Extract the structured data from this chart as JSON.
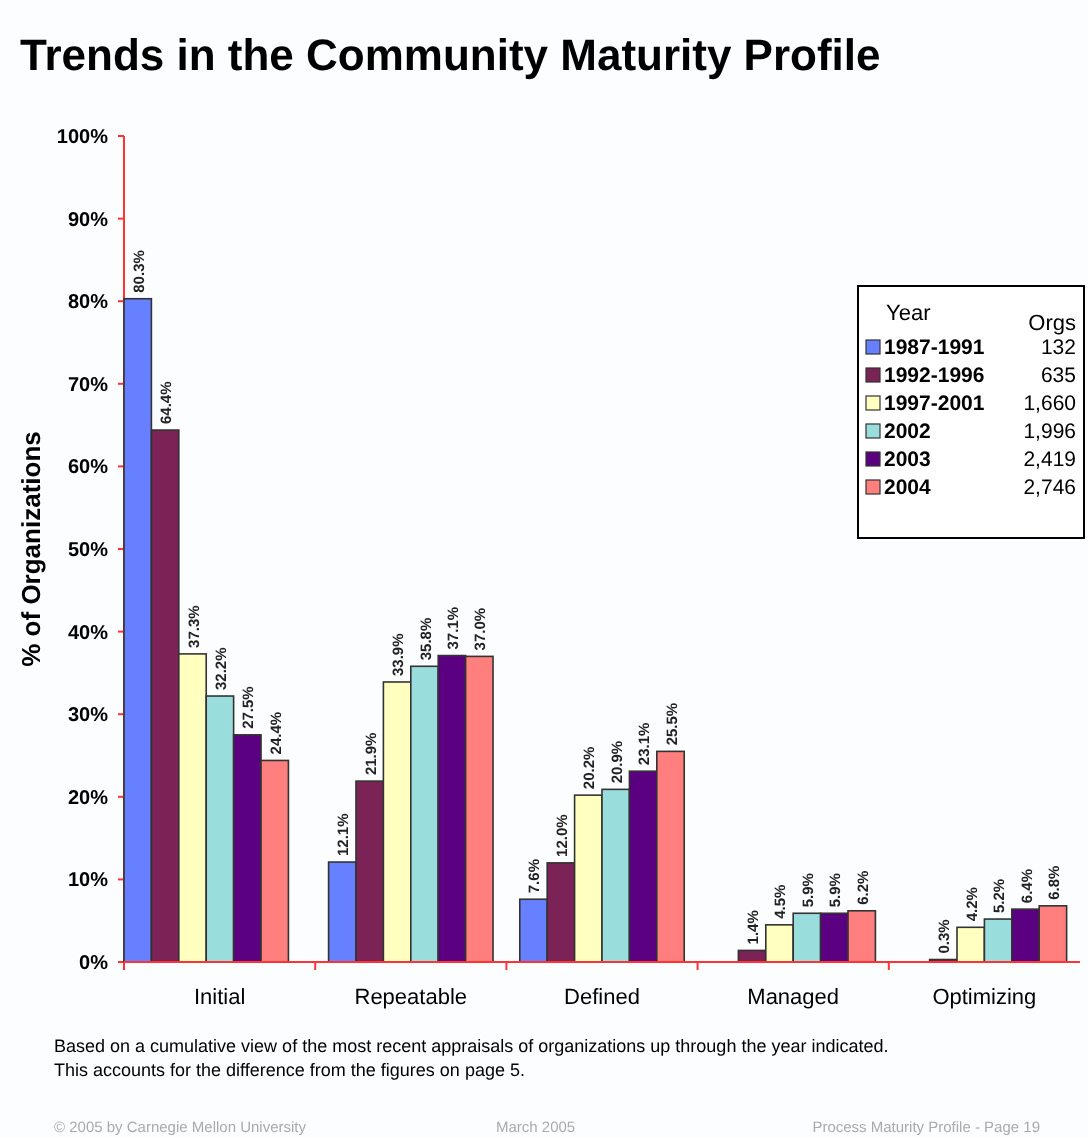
{
  "chart_data": {
    "type": "bar",
    "title": "Trends in the Community Maturity Profile",
    "ylabel": "% of Organizations",
    "categories": [
      "Initial",
      "Repeatable",
      "Defined",
      "Managed",
      "Optimizing"
    ],
    "series": [
      {
        "name": "1987-1991",
        "color": "#6680ff",
        "values": [
          80.3,
          12.1,
          7.6,
          null,
          null
        ],
        "value_labels": [
          "80.3%",
          "12.1%",
          "7.6%",
          null,
          null
        ]
      },
      {
        "name": "1992-1996",
        "color": "#7b2257",
        "values": [
          64.4,
          21.9,
          12.0,
          1.4,
          0.3
        ],
        "value_labels": [
          "64.4%",
          "21.9%",
          "12.0%",
          "1.4%",
          "0.3%"
        ]
      },
      {
        "name": "1997-2001",
        "color": "#ffffc0",
        "values": [
          37.3,
          33.9,
          20.2,
          4.5,
          4.2
        ],
        "value_labels": [
          "37.3%",
          "33.9%",
          "20.2%",
          "4.5%",
          "4.2%"
        ]
      },
      {
        "name": "2002",
        "color": "#99dddd",
        "values": [
          32.2,
          35.8,
          20.9,
          5.9,
          5.2
        ],
        "value_labels": [
          "32.2%",
          "35.8%",
          "20.9%",
          "5.9%",
          "5.2%"
        ]
      },
      {
        "name": "2003",
        "color": "#5a0080",
        "values": [
          27.5,
          37.1,
          23.1,
          5.9,
          6.4
        ],
        "value_labels": [
          "27.5%",
          "37.1%",
          "23.1%",
          "5.9%",
          "6.4%"
        ]
      },
      {
        "name": "2004",
        "color": "#ff7f7f",
        "values": [
          24.4,
          37.0,
          25.5,
          6.2,
          6.8
        ],
        "value_labels": [
          "24.4%",
          "37.0%",
          "25.5%",
          "6.2%",
          "6.8%"
        ]
      }
    ],
    "ylim": [
      0,
      100
    ],
    "yticks": [
      {
        "value": 0,
        "label": "0%"
      },
      {
        "value": 10,
        "label": "10%"
      },
      {
        "value": 20,
        "label": "20%"
      },
      {
        "value": 30,
        "label": "30%"
      },
      {
        "value": 40,
        "label": "40%"
      },
      {
        "value": 50,
        "label": "50%"
      },
      {
        "value": 60,
        "label": "60%"
      },
      {
        "value": 70,
        "label": "70%"
      },
      {
        "value": 80,
        "label": "80%"
      },
      {
        "value": 90,
        "label": "90%"
      },
      {
        "value": 100,
        "label": "100%"
      }
    ],
    "grid": false,
    "legend": "top right",
    "legend_title": "Year",
    "annotations": [
      "Based on a cumulative view of the most recent appraisals of organizations up through the year indicated.",
      "This accounts for the difference from the figures on page 5.",
      "© 2005  by Carnegie Mellon University",
      "March 2005",
      "Process Maturity Profile - Page 19",
      "Orgs",
      "132",
      "635",
      "1,660",
      "1,996",
      "2,419",
      "2,746"
    ]
  }
}
